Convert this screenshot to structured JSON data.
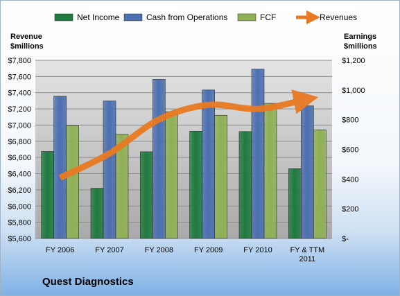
{
  "chart_data": {
    "type": "bar",
    "title": "",
    "categories": [
      [
        "FY 2006"
      ],
      [
        "FY 2007"
      ],
      [
        "FY 2008"
      ],
      [
        "FY 2009"
      ],
      [
        "FY 2010"
      ],
      [
        "FY & TTM",
        "2011"
      ]
    ],
    "series": [
      {
        "name": "Net Income",
        "axis": "right",
        "color": "#1f7a3f",
        "values": [
          586,
          338,
          584,
          722,
          720,
          470
        ]
      },
      {
        "name": "Cash from Operations",
        "axis": "right",
        "color": "#4b6fb0",
        "values": [
          958,
          926,
          1072,
          1000,
          1140,
          893
        ]
      },
      {
        "name": "FCF",
        "axis": "right",
        "color": "#8fb055",
        "values": [
          760,
          702,
          854,
          830,
          910,
          732
        ]
      },
      {
        "name": "Revenues",
        "axis": "left",
        "type": "line",
        "color": "#e87a22",
        "values": [
          6350,
          6650,
          7070,
          7250,
          7200,
          7320
        ]
      }
    ],
    "left_axis": {
      "title_lines": [
        "Revenue",
        "$millions"
      ],
      "min": 5600,
      "max": 7800,
      "step": 200,
      "tick_labels": [
        "$5,600",
        "$5,800",
        "$6,000",
        "$6,200",
        "$6,400",
        "$6,600",
        "$6,800",
        "$7,000",
        "$7,200",
        "$7,400",
        "$7,600",
        "$7,800"
      ]
    },
    "right_axis": {
      "title_lines": [
        "Earnings",
        "$millions"
      ],
      "min": 0,
      "max": 1200,
      "step": 200,
      "tick_labels": [
        "$-",
        "$200",
        "$400",
        "$600",
        "$800",
        "$1,000",
        "$1,200"
      ]
    },
    "grid": true,
    "legend_position": "top",
    "plot_background": "#bfbfbf"
  },
  "footer": {
    "company": "Quest Diagnostics"
  }
}
